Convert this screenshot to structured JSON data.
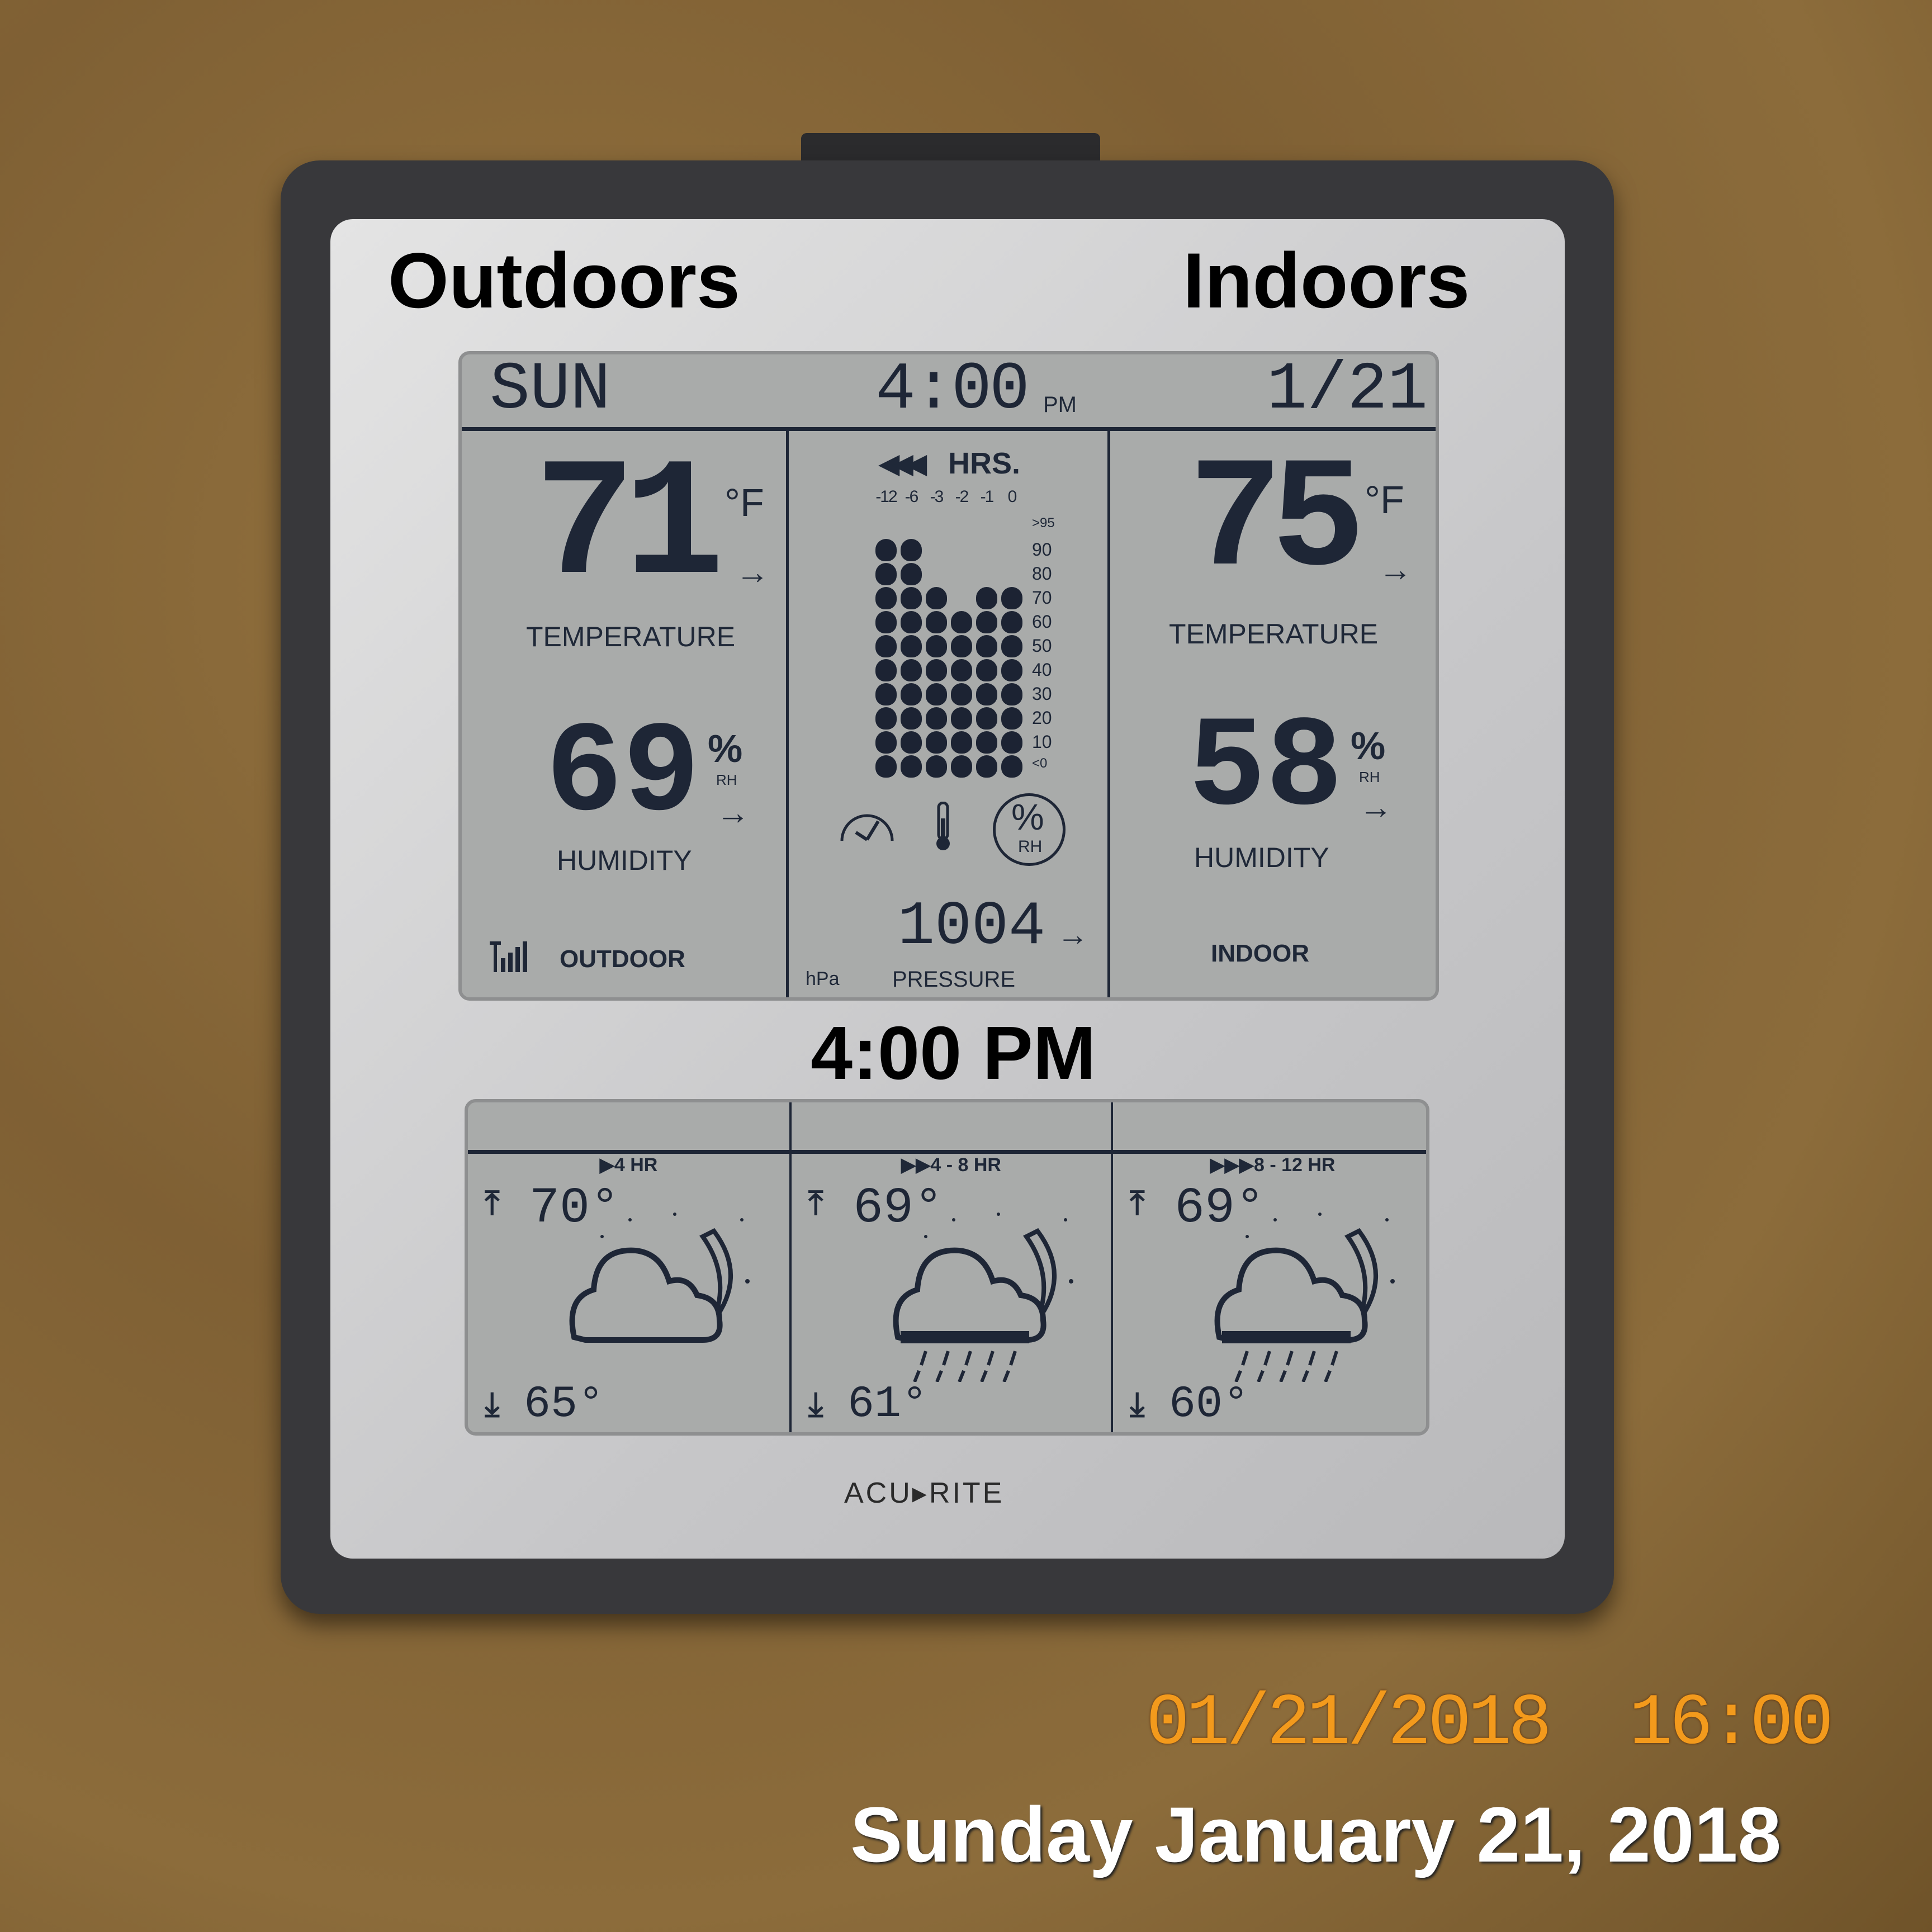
{
  "overlay": {
    "outdoors": "Outdoors",
    "indoors": "Indoors",
    "time_label": "4:00 PM",
    "camera_timestamp": "01/21/2018  16:00",
    "date_caption": "Sunday January 21, 2018",
    "timestamp_color": "#f39a1c"
  },
  "header": {
    "day": "SUN",
    "time": "4:00",
    "ampm": "PM",
    "date": "1/21"
  },
  "outdoor": {
    "temperature": "71",
    "temp_unit": "°F",
    "temperature_label": "TEMPERATURE",
    "humidity": "69",
    "humidity_unit": "%",
    "rh": "RH",
    "humidity_label": "HUMIDITY",
    "section_label": "OUTDOOR",
    "trend": "→",
    "signal_icon": "signal-bars-icon"
  },
  "indoor": {
    "temperature": "75",
    "temp_unit": "°F",
    "temperature_label": "TEMPERATURE",
    "humidity": "58",
    "humidity_unit": "%",
    "rh": "RH",
    "humidity_label": "HUMIDITY",
    "section_label": "INDOOR",
    "trend": "→"
  },
  "history": {
    "title": "HRS.",
    "arrows": "◀◀◀",
    "hours": [
      "-12",
      "-6",
      "-3",
      "-2",
      "-1",
      "0"
    ],
    "scale": [
      ">95",
      "90",
      "80",
      "70",
      "60",
      "50",
      "40",
      "30",
      "20",
      "10",
      "<0"
    ],
    "segments_lit": [
      10,
      10,
      8,
      7,
      8,
      8
    ],
    "max_segments": 10,
    "selected_mode": "humidity",
    "mode_icons": [
      "barometer-icon",
      "thermometer-icon",
      "humidity-icon"
    ],
    "rh_icon_text": {
      "pct": "%",
      "rh": "RH"
    }
  },
  "pressure": {
    "value": "1004",
    "unit": "hPa",
    "label": "PRESSURE",
    "trend": "→"
  },
  "forecast": [
    {
      "period": "▶4 HR",
      "high": "70°",
      "low": "65°",
      "icon": "partly-cloudy-night-icon"
    },
    {
      "period": "▶▶4 - 8 HR",
      "high": "69°",
      "low": "61°",
      "icon": "cloudy-rain-night-icon"
    },
    {
      "period": "▶▶▶8 - 12 HR",
      "high": "69°",
      "low": "60°",
      "icon": "cloudy-rain-night-icon"
    }
  ],
  "brand": "ACU▸RITE"
}
